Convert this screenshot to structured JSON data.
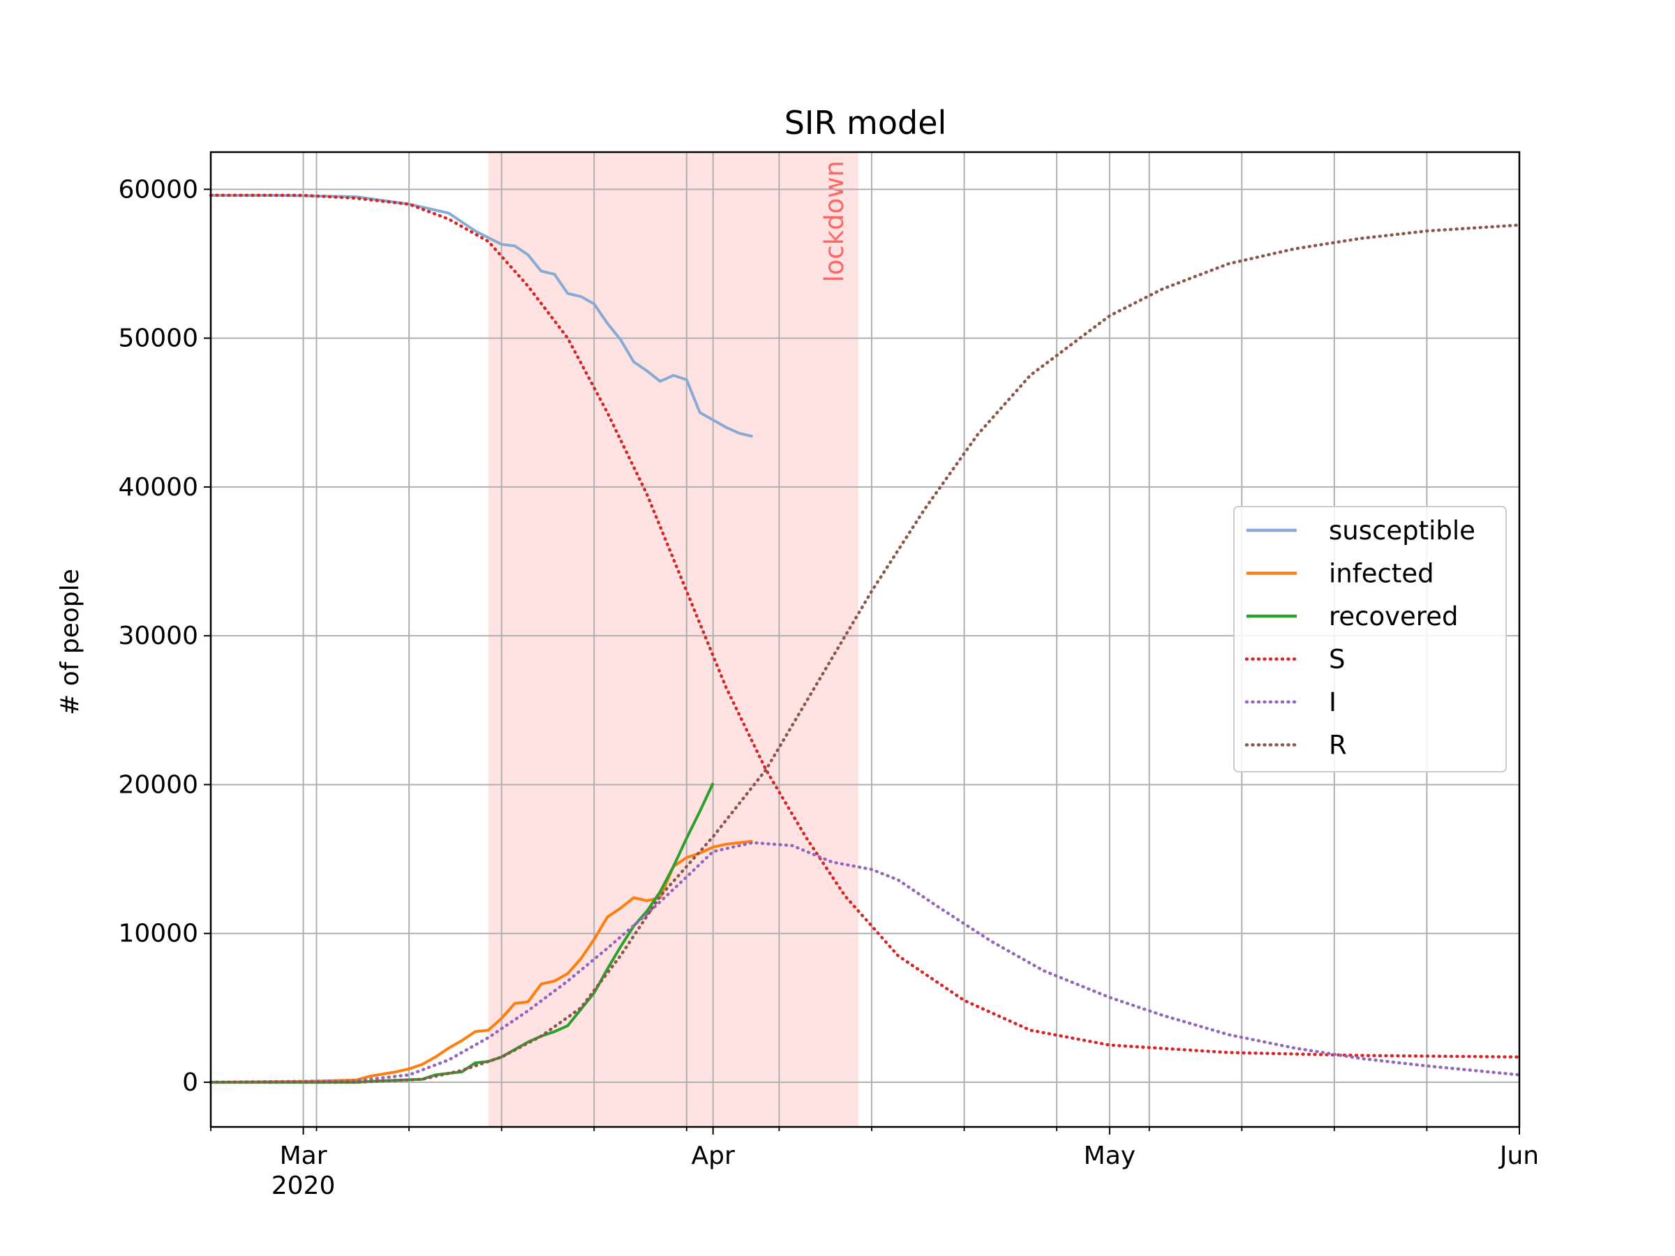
{
  "chart_data": {
    "type": "line",
    "title": "SIR model",
    "xlabel": "",
    "ylabel": "# of people",
    "x_axis_type": "date",
    "xlim": [
      "2020-02-23",
      "2020-06-01"
    ],
    "ylim": [
      -3000,
      62500
    ],
    "x_ticks": [
      {
        "date": "2020-03-01",
        "label": "Mar",
        "sublabel": "2020"
      },
      {
        "date": "2020-04-01",
        "label": "Apr",
        "sublabel": ""
      },
      {
        "date": "2020-05-01",
        "label": "May",
        "sublabel": ""
      },
      {
        "date": "2020-06-01",
        "label": "Jun",
        "sublabel": ""
      }
    ],
    "minor_x_ticks": [
      "2020-02-23",
      "2020-03-02",
      "2020-03-09",
      "2020-03-16",
      "2020-03-23",
      "2020-03-30",
      "2020-04-06",
      "2020-04-13",
      "2020-04-20",
      "2020-04-27",
      "2020-05-04",
      "2020-05-11",
      "2020-05-18",
      "2020-05-25",
      "2020-06-01"
    ],
    "y_ticks": [
      0,
      10000,
      20000,
      30000,
      40000,
      50000,
      60000
    ],
    "grid": true,
    "legend_position": "center-right",
    "shaded_region": {
      "start": "2020-03-15",
      "end": "2020-04-12",
      "label": "lockdown",
      "color": "#ffb3b3"
    },
    "series": [
      {
        "name": "susceptible",
        "style": "solid",
        "color": "#88abd3",
        "points": [
          [
            "2020-02-23",
            59600
          ],
          [
            "2020-02-28",
            59600
          ],
          [
            "2020-03-05",
            59500
          ],
          [
            "2020-03-09",
            59000
          ],
          [
            "2020-03-12",
            58400
          ],
          [
            "2020-03-14",
            57200
          ],
          [
            "2020-03-16",
            56300
          ],
          [
            "2020-03-17",
            56200
          ],
          [
            "2020-03-18",
            55600
          ],
          [
            "2020-03-19",
            54500
          ],
          [
            "2020-03-20",
            54300
          ],
          [
            "2020-03-21",
            53000
          ],
          [
            "2020-03-22",
            52800
          ],
          [
            "2020-03-23",
            52300
          ],
          [
            "2020-03-24",
            51000
          ],
          [
            "2020-03-25",
            49900
          ],
          [
            "2020-03-26",
            48400
          ],
          [
            "2020-03-27",
            47800
          ],
          [
            "2020-03-28",
            47100
          ],
          [
            "2020-03-29",
            47500
          ],
          [
            "2020-03-30",
            47200
          ],
          [
            "2020-03-31",
            45000
          ],
          [
            "2020-04-01",
            44500
          ],
          [
            "2020-04-02",
            44000
          ],
          [
            "2020-04-03",
            43600
          ],
          [
            "2020-04-04",
            43400
          ]
        ]
      },
      {
        "name": "infected",
        "style": "solid",
        "color": "#ff7f0e",
        "points": [
          [
            "2020-02-23",
            0
          ],
          [
            "2020-03-01",
            50
          ],
          [
            "2020-03-05",
            150
          ],
          [
            "2020-03-06",
            400
          ],
          [
            "2020-03-08",
            700
          ],
          [
            "2020-03-09",
            900
          ],
          [
            "2020-03-10",
            1200
          ],
          [
            "2020-03-11",
            1700
          ],
          [
            "2020-03-12",
            2300
          ],
          [
            "2020-03-13",
            2800
          ],
          [
            "2020-03-14",
            3400
          ],
          [
            "2020-03-15",
            3500
          ],
          [
            "2020-03-16",
            4300
          ],
          [
            "2020-03-17",
            5300
          ],
          [
            "2020-03-18",
            5400
          ],
          [
            "2020-03-19",
            6600
          ],
          [
            "2020-03-20",
            6800
          ],
          [
            "2020-03-21",
            7300
          ],
          [
            "2020-03-22",
            8300
          ],
          [
            "2020-03-23",
            9600
          ],
          [
            "2020-03-24",
            11100
          ],
          [
            "2020-03-25",
            11700
          ],
          [
            "2020-03-26",
            12400
          ],
          [
            "2020-03-27",
            12200
          ],
          [
            "2020-03-28",
            12400
          ],
          [
            "2020-03-29",
            14500
          ],
          [
            "2020-03-30",
            15100
          ],
          [
            "2020-03-31",
            15400
          ],
          [
            "2020-04-01",
            15800
          ],
          [
            "2020-04-02",
            16000
          ],
          [
            "2020-04-04",
            16200
          ]
        ]
      },
      {
        "name": "recovered",
        "style": "solid",
        "color": "#2ca02c",
        "points": [
          [
            "2020-02-23",
            0
          ],
          [
            "2020-03-05",
            0
          ],
          [
            "2020-03-07",
            100
          ],
          [
            "2020-03-10",
            200
          ],
          [
            "2020-03-11",
            500
          ],
          [
            "2020-03-12",
            600
          ],
          [
            "2020-03-13",
            700
          ],
          [
            "2020-03-14",
            1300
          ],
          [
            "2020-03-15",
            1400
          ],
          [
            "2020-03-16",
            1700
          ],
          [
            "2020-03-17",
            2200
          ],
          [
            "2020-03-18",
            2700
          ],
          [
            "2020-03-19",
            3100
          ],
          [
            "2020-03-20",
            3400
          ],
          [
            "2020-03-21",
            3800
          ],
          [
            "2020-03-22",
            4900
          ],
          [
            "2020-03-23",
            6000
          ],
          [
            "2020-03-24",
            7600
          ],
          [
            "2020-03-25",
            9100
          ],
          [
            "2020-03-26",
            10500
          ],
          [
            "2020-03-27",
            11500
          ],
          [
            "2020-03-28",
            12800
          ],
          [
            "2020-03-29",
            14500
          ],
          [
            "2020-03-30",
            16400
          ],
          [
            "2020-03-31",
            18200
          ],
          [
            "2020-04-01",
            20100
          ]
        ]
      },
      {
        "name": "S",
        "style": "dotted",
        "color": "#d62728",
        "points": [
          [
            "2020-02-23",
            59600
          ],
          [
            "2020-03-01",
            59600
          ],
          [
            "2020-03-05",
            59400
          ],
          [
            "2020-03-09",
            59000
          ],
          [
            "2020-03-12",
            58000
          ],
          [
            "2020-03-15",
            56500
          ],
          [
            "2020-03-18",
            53500
          ],
          [
            "2020-03-21",
            50000
          ],
          [
            "2020-03-24",
            45000
          ],
          [
            "2020-03-27",
            39500
          ],
          [
            "2020-03-30",
            33000
          ],
          [
            "2020-04-02",
            26500
          ],
          [
            "2020-04-05",
            21000
          ],
          [
            "2020-04-08",
            16500
          ],
          [
            "2020-04-11",
            12500
          ],
          [
            "2020-04-15",
            8500
          ],
          [
            "2020-04-20",
            5500
          ],
          [
            "2020-04-25",
            3500
          ],
          [
            "2020-05-01",
            2500
          ],
          [
            "2020-05-10",
            2000
          ],
          [
            "2020-05-20",
            1800
          ],
          [
            "2020-06-01",
            1700
          ]
        ]
      },
      {
        "name": "I",
        "style": "dotted",
        "color": "#9467bd",
        "points": [
          [
            "2020-02-23",
            0
          ],
          [
            "2020-03-05",
            100
          ],
          [
            "2020-03-09",
            500
          ],
          [
            "2020-03-12",
            1500
          ],
          [
            "2020-03-15",
            3000
          ],
          [
            "2020-03-18",
            4800
          ],
          [
            "2020-03-21",
            6800
          ],
          [
            "2020-03-24",
            9000
          ],
          [
            "2020-03-27",
            11300
          ],
          [
            "2020-03-30",
            13800
          ],
          [
            "2020-04-01",
            15500
          ],
          [
            "2020-04-04",
            16100
          ],
          [
            "2020-04-07",
            15900
          ],
          [
            "2020-04-10",
            14800
          ],
          [
            "2020-04-13",
            14300
          ],
          [
            "2020-04-15",
            13600
          ],
          [
            "2020-04-18",
            11800
          ],
          [
            "2020-04-22",
            9500
          ],
          [
            "2020-04-26",
            7500
          ],
          [
            "2020-05-01",
            5700
          ],
          [
            "2020-05-05",
            4500
          ],
          [
            "2020-05-10",
            3200
          ],
          [
            "2020-05-15",
            2300
          ],
          [
            "2020-05-20",
            1600
          ],
          [
            "2020-05-25",
            1100
          ],
          [
            "2020-06-01",
            500
          ]
        ]
      },
      {
        "name": "R",
        "style": "dotted",
        "color": "#8c564b",
        "points": [
          [
            "2020-02-23",
            0
          ],
          [
            "2020-03-05",
            0
          ],
          [
            "2020-03-10",
            200
          ],
          [
            "2020-03-13",
            800
          ],
          [
            "2020-03-16",
            1700
          ],
          [
            "2020-03-19",
            3100
          ],
          [
            "2020-03-22",
            5000
          ],
          [
            "2020-03-25",
            8500
          ],
          [
            "2020-03-28",
            12500
          ],
          [
            "2020-04-01",
            16500
          ],
          [
            "2020-04-05",
            21000
          ],
          [
            "2020-04-09",
            27000
          ],
          [
            "2020-04-13",
            33000
          ],
          [
            "2020-04-17",
            38500
          ],
          [
            "2020-04-21",
            43500
          ],
          [
            "2020-04-25",
            47500
          ],
          [
            "2020-05-01",
            51500
          ],
          [
            "2020-05-05",
            53300
          ],
          [
            "2020-05-10",
            55000
          ],
          [
            "2020-05-15",
            56000
          ],
          [
            "2020-05-20",
            56700
          ],
          [
            "2020-05-25",
            57200
          ],
          [
            "2020-06-01",
            57600
          ]
        ]
      }
    ]
  }
}
